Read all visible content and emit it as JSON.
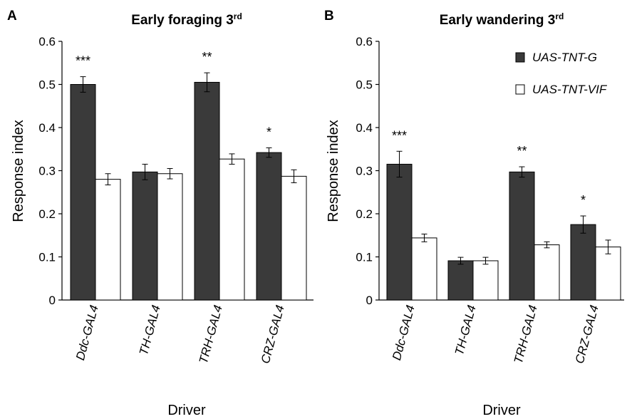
{
  "chart_data": [
    {
      "type": "bar",
      "panel": "A",
      "title": "Early foraging 3rd",
      "title_super": "rd",
      "xlabel": "Driver",
      "ylabel": "Response index",
      "ylim": [
        0,
        0.6
      ],
      "yticks": [
        "0",
        "0.1",
        "0.2",
        "0.3",
        "0.4",
        "0.5",
        "0.6"
      ],
      "categories": [
        "Ddc-GAL4",
        "TH-GAL4",
        "TRH-GAL4",
        "CRZ-GAL4"
      ],
      "series": [
        {
          "name": "UAS-TNT-G",
          "color": "#3a3a3a",
          "values": [
            0.5,
            0.297,
            0.505,
            0.342
          ],
          "errors": [
            0.018,
            0.018,
            0.022,
            0.011
          ]
        },
        {
          "name": "UAS-TNT-VIF",
          "color": "#ffffff",
          "values": [
            0.28,
            0.293,
            0.327,
            0.287
          ],
          "errors": [
            0.013,
            0.012,
            0.012,
            0.015
          ]
        }
      ],
      "significance": [
        "***",
        "",
        "**",
        "*"
      ],
      "legend": false,
      "grid": false
    },
    {
      "type": "bar",
      "panel": "B",
      "title": "Early wandering 3rd",
      "title_super": "rd",
      "xlabel": "Driver",
      "ylabel": "Response index",
      "ylim": [
        0,
        0.6
      ],
      "yticks": [
        "0",
        "0.1",
        "0.2",
        "0.3",
        "0.4",
        "0.5",
        "0.6"
      ],
      "categories": [
        "Ddc-GAL4",
        "TH-GAL4",
        "TRH-GAL4",
        "CRZ-GAL4"
      ],
      "series": [
        {
          "name": "UAS-TNT-G",
          "color": "#3a3a3a",
          "values": [
            0.315,
            0.091,
            0.297,
            0.175
          ],
          "errors": [
            0.03,
            0.008,
            0.012,
            0.02
          ]
        },
        {
          "name": "UAS-TNT-VIF",
          "color": "#ffffff",
          "values": [
            0.144,
            0.091,
            0.128,
            0.123
          ],
          "errors": [
            0.009,
            0.008,
            0.007,
            0.016
          ]
        }
      ],
      "significance": [
        "***",
        "",
        "**",
        "*"
      ],
      "legend": true,
      "legend_position": "top-right",
      "grid": false
    }
  ]
}
